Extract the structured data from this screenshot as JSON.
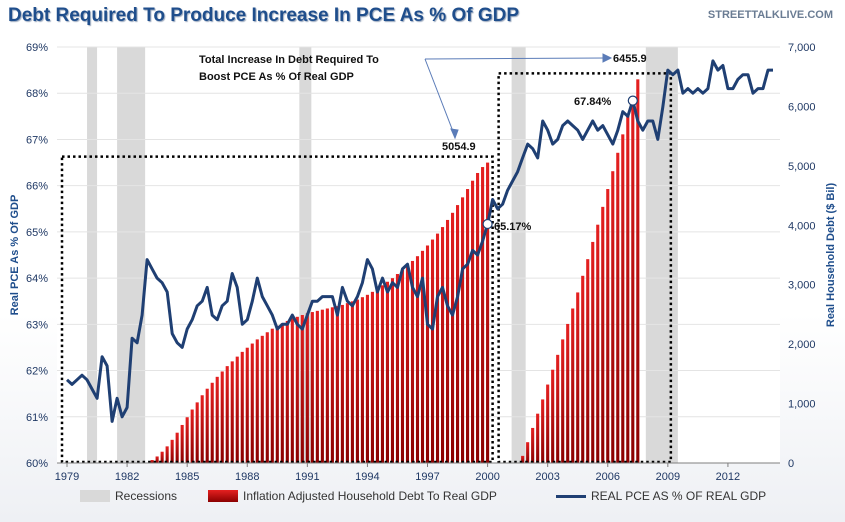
{
  "header": {
    "title": "Debt Required To Produce Increase In PCE As % Of GDP",
    "site": "STREETTALKLIVE.COM"
  },
  "annotations": {
    "box_text_line1": "Total Increase In Debt Required To",
    "box_text_line2": "Boost PCE As % Of Real GDP",
    "peak1_value": "5054.9",
    "peak2_value": "6455.9",
    "pce_2000_label": "65.17%",
    "pce_2007_label": "67.84%"
  },
  "legend": {
    "recessions": "Recessions",
    "debt": "Inflation Adjusted Household Debt To Real GDP",
    "pce": "REAL PCE AS % OF REAL GDP"
  },
  "colors": {
    "bar_top": "#e52020",
    "bar_bottom": "#8b0000",
    "line": "#1f3f73",
    "recession": "#d9d9d9",
    "title": "#1f4e8c"
  },
  "chart_data": {
    "type": "bar",
    "title": "Debt Required To Produce Increase In PCE As % Of GDP",
    "x_ticks": [
      "1979",
      "1982",
      "1985",
      "1988",
      "1991",
      "1994",
      "1997",
      "2000",
      "2003",
      "2006",
      "2009",
      "2012"
    ],
    "xlim": [
      1978.5,
      2014.6
    ],
    "left_axis": {
      "label": "Real PCE As % Of GDP",
      "ylim": [
        60,
        69
      ],
      "ticks": [
        "60%",
        "61%",
        "62%",
        "63%",
        "64%",
        "65%",
        "66%",
        "67%",
        "68%",
        "69%"
      ]
    },
    "right_axis": {
      "label": "Real Household Debt ($ Bil)",
      "ylim": [
        0,
        7000
      ],
      "ticks": [
        "0",
        "1,000",
        "2,000",
        "3,000",
        "4,000",
        "5,000",
        "6,000",
        "7,000"
      ]
    },
    "recessions": [
      [
        1980.0,
        1980.5
      ],
      [
        1981.5,
        1982.9
      ],
      [
        1990.6,
        1991.2
      ],
      [
        2001.2,
        2001.9
      ],
      [
        2007.9,
        2009.5
      ]
    ],
    "series": [
      {
        "name": "Inflation Adjusted Household Debt To Real GDP",
        "type": "bar",
        "axis": "right",
        "segments": [
          {
            "x": [
              1983.25,
              1983.5,
              1983.75,
              1984.0,
              1984.25,
              1984.5,
              1984.75,
              1985.0,
              1985.25,
              1985.5,
              1985.75,
              1986.0,
              1986.25,
              1986.5,
              1986.75,
              1987.0,
              1987.25,
              1987.5,
              1987.75,
              1988.0,
              1988.25,
              1988.5,
              1988.75,
              1989.0,
              1989.25,
              1989.5,
              1989.75,
              1990.0,
              1990.25,
              1990.5,
              1990.75,
              1991.0,
              1991.25,
              1991.5,
              1991.75,
              1992.0,
              1992.25,
              1992.5,
              1992.75,
              1993.0,
              1993.25,
              1993.5,
              1993.75,
              1994.0,
              1994.25,
              1994.5,
              1994.75,
              1995.0,
              1995.25,
              1995.5,
              1995.75,
              1996.0,
              1996.25,
              1996.5,
              1996.75,
              1997.0,
              1997.25,
              1997.5,
              1997.75,
              1998.0,
              1998.25,
              1998.5,
              1998.75,
              1999.0,
              1999.25,
              1999.5,
              1999.75,
              2000.0
            ],
            "values": [
              50,
              110,
              190,
              280,
              390,
              510,
              640,
              770,
              900,
              1020,
              1140,
              1250,
              1350,
              1450,
              1540,
              1630,
              1710,
              1790,
              1870,
              1940,
              2010,
              2080,
              2140,
              2200,
              2260,
              2310,
              2350,
              2390,
              2430,
              2460,
              2490,
              2520,
              2540,
              2560,
              2580,
              2600,
              2620,
              2640,
              2660,
              2690,
              2720,
              2750,
              2790,
              2830,
              2880,
              2930,
              2990,
              3050,
              3110,
              3180,
              3250,
              3320,
              3400,
              3480,
              3570,
              3660,
              3760,
              3860,
              3970,
              4090,
              4210,
              4340,
              4470,
              4610,
              4750,
              4880,
              4980,
              5054.9
            ]
          },
          {
            "x": [
              2001.75,
              2002.0,
              2002.25,
              2002.5,
              2002.75,
              2003.0,
              2003.25,
              2003.5,
              2003.75,
              2004.0,
              2004.25,
              2004.5,
              2004.75,
              2005.0,
              2005.25,
              2005.5,
              2005.75,
              2006.0,
              2006.25,
              2006.5,
              2006.75,
              2007.0,
              2007.25,
              2007.5
            ],
            "values": [
              120,
              350,
              590,
              830,
              1070,
              1320,
              1570,
              1820,
              2080,
              2340,
              2600,
              2870,
              3150,
              3430,
              3720,
              4010,
              4310,
              4610,
              4910,
              5220,
              5530,
              5840,
              6150,
              6455.9
            ]
          }
        ]
      },
      {
        "name": "REAL PCE AS % OF REAL GDP",
        "type": "line",
        "axis": "left",
        "x": [
          1979.0,
          1979.25,
          1979.5,
          1979.75,
          1980.0,
          1980.25,
          1980.5,
          1980.75,
          1981.0,
          1981.25,
          1981.5,
          1981.75,
          1982.0,
          1982.25,
          1982.5,
          1982.75,
          1983.0,
          1983.25,
          1983.5,
          1983.75,
          1984.0,
          1984.25,
          1984.5,
          1984.75,
          1985.0,
          1985.25,
          1985.5,
          1985.75,
          1986.0,
          1986.25,
          1986.5,
          1986.75,
          1987.0,
          1987.25,
          1987.5,
          1987.75,
          1988.0,
          1988.25,
          1988.5,
          1988.75,
          1989.0,
          1989.25,
          1989.5,
          1989.75,
          1990.0,
          1990.25,
          1990.5,
          1990.75,
          1991.0,
          1991.25,
          1991.5,
          1991.75,
          1992.0,
          1992.25,
          1992.5,
          1992.75,
          1993.0,
          1993.25,
          1993.5,
          1993.75,
          1994.0,
          1994.25,
          1994.5,
          1994.75,
          1995.0,
          1995.25,
          1995.5,
          1995.75,
          1996.0,
          1996.25,
          1996.5,
          1996.75,
          1997.0,
          1997.25,
          1997.5,
          1997.75,
          1998.0,
          1998.25,
          1998.5,
          1998.75,
          1999.0,
          1999.25,
          1999.5,
          1999.75,
          2000.0,
          2000.25,
          2000.5,
          2000.75,
          2001.0,
          2001.25,
          2001.5,
          2001.75,
          2002.0,
          2002.25,
          2002.5,
          2002.75,
          2003.0,
          2003.25,
          2003.5,
          2003.75,
          2004.0,
          2004.25,
          2004.5,
          2004.75,
          2005.0,
          2005.25,
          2005.5,
          2005.75,
          2006.0,
          2006.25,
          2006.5,
          2006.75,
          2007.0,
          2007.25,
          2007.5,
          2007.75,
          2008.0,
          2008.25,
          2008.5,
          2008.75,
          2009.0,
          2009.25,
          2009.5,
          2009.75,
          2010.0,
          2010.25,
          2010.5,
          2010.75,
          2011.0,
          2011.25,
          2011.5,
          2011.75,
          2012.0,
          2012.25,
          2012.5,
          2012.75,
          2013.0,
          2013.25,
          2013.5,
          2013.75,
          2014.0,
          2014.25
        ],
        "values": [
          61.8,
          61.7,
          61.8,
          61.9,
          61.8,
          61.6,
          61.4,
          62.3,
          62.1,
          60.9,
          61.4,
          61.0,
          61.2,
          62.7,
          62.6,
          63.2,
          64.4,
          64.2,
          64.0,
          63.9,
          63.7,
          62.8,
          62.6,
          62.5,
          62.9,
          63.1,
          63.4,
          63.5,
          63.8,
          63.2,
          63.1,
          63.4,
          63.5,
          64.1,
          63.8,
          63.0,
          63.1,
          63.5,
          64.0,
          63.6,
          63.4,
          63.2,
          62.9,
          63.0,
          63.0,
          63.2,
          63.0,
          62.9,
          63.2,
          63.5,
          63.5,
          63.6,
          63.6,
          63.6,
          63.2,
          63.8,
          63.5,
          63.4,
          63.6,
          63.9,
          64.4,
          64.2,
          63.7,
          64.0,
          63.7,
          63.9,
          63.8,
          64.2,
          64.3,
          63.8,
          63.6,
          64.0,
          63.0,
          62.9,
          63.6,
          63.8,
          63.4,
          63.2,
          63.6,
          64.2,
          64.3,
          64.6,
          64.5,
          64.8,
          65.17,
          65.7,
          65.5,
          65.6,
          65.9,
          66.1,
          66.3,
          66.6,
          66.9,
          66.8,
          66.6,
          67.4,
          67.2,
          66.9,
          67.0,
          67.3,
          67.4,
          67.3,
          67.2,
          67.0,
          67.2,
          67.4,
          67.2,
          67.3,
          67.1,
          66.9,
          67.2,
          67.6,
          67.5,
          67.84,
          67.4,
          67.2,
          67.4,
          67.4,
          67.0,
          67.7,
          68.5,
          68.4,
          68.5,
          68.0,
          68.1,
          68.0,
          68.1,
          68.0,
          68.1,
          68.7,
          68.5,
          68.6,
          68.1,
          68.1,
          68.3,
          68.4,
          68.4,
          68.0,
          68.1,
          68.1,
          68.5,
          68.5
        ]
      }
    ],
    "point_labels": [
      {
        "x": 2000.0,
        "y": 65.17,
        "text": "65.17%"
      },
      {
        "x": 2007.25,
        "y": 67.84,
        "text": "67.84%"
      }
    ],
    "legend_position": "bottom"
  }
}
